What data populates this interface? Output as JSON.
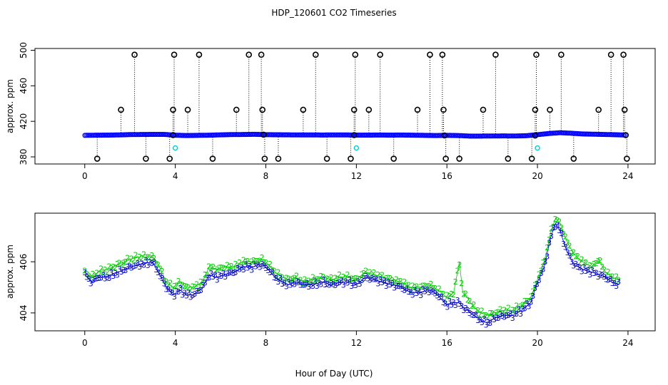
{
  "chart_data": [
    {
      "type": "scatter",
      "panel": "top",
      "title": "HDP_120601  CO2 Timeseries",
      "xlabel": "",
      "ylabel": "approx. ppm",
      "xlim": [
        -2.2,
        25.2
      ],
      "ylim": [
        372,
        502
      ],
      "xticks": [
        0,
        4,
        8,
        12,
        16,
        20,
        24
      ],
      "yticks": [
        380,
        420,
        460,
        500
      ],
      "colors": {
        "series": "#0000ff",
        "extreme": "#000000",
        "low": "#00cccc",
        "drop": "#000000"
      },
      "series": [
        {
          "name": "co2",
          "x": [
            0,
            0.5,
            1,
            1.5,
            2,
            2.5,
            3,
            3.5,
            4,
            4.5,
            5,
            5.5,
            6,
            6.5,
            7,
            7.5,
            8,
            8.5,
            9,
            9.5,
            10,
            10.5,
            11,
            11.5,
            12,
            12.5,
            13,
            13.5,
            14,
            14.5,
            15,
            15.5,
            16,
            16.5,
            17,
            17.5,
            18,
            18.5,
            19,
            19.5,
            20,
            20.5,
            21,
            21.5,
            22,
            22.5,
            23,
            23.5,
            23.9
          ],
          "y": [
            404.2,
            404.4,
            404.5,
            404.7,
            405.1,
            405.2,
            405.3,
            405.3,
            404.4,
            404.0,
            404.2,
            404.4,
            404.8,
            405.1,
            405.2,
            405.4,
            405.0,
            404.9,
            404.8,
            404.7,
            404.7,
            404.6,
            404.7,
            404.7,
            404.5,
            404.5,
            404.6,
            404.5,
            404.6,
            404.4,
            404.2,
            404.0,
            404.2,
            404.0,
            403.4,
            403.4,
            403.5,
            403.6,
            403.5,
            403.8,
            405.0,
            406.3,
            407.2,
            406.6,
            405.8,
            405.5,
            405.2,
            404.9,
            404.5
          ]
        }
      ],
      "spikes": [
        {
          "x": 0.55,
          "y": 378
        },
        {
          "x": 1.6,
          "y": 433
        },
        {
          "x": 2.2,
          "y": 495
        },
        {
          "x": 2.7,
          "y": 378
        },
        {
          "x": 3.75,
          "y": 378
        },
        {
          "x": 3.9,
          "y": 433
        },
        {
          "x": 3.95,
          "y": 495
        },
        {
          "x": 4.55,
          "y": 433
        },
        {
          "x": 5.05,
          "y": 495
        },
        {
          "x": 5.65,
          "y": 378
        },
        {
          "x": 6.7,
          "y": 433
        },
        {
          "x": 7.25,
          "y": 495
        },
        {
          "x": 7.8,
          "y": 495
        },
        {
          "x": 7.85,
          "y": 433
        },
        {
          "x": 7.95,
          "y": 378
        },
        {
          "x": 8.55,
          "y": 378
        },
        {
          "x": 9.65,
          "y": 433
        },
        {
          "x": 10.2,
          "y": 495
        },
        {
          "x": 10.7,
          "y": 378
        },
        {
          "x": 11.75,
          "y": 378
        },
        {
          "x": 11.9,
          "y": 433
        },
        {
          "x": 11.95,
          "y": 495
        },
        {
          "x": 12.55,
          "y": 433
        },
        {
          "x": 13.05,
          "y": 495
        },
        {
          "x": 13.65,
          "y": 378
        },
        {
          "x": 14.7,
          "y": 433
        },
        {
          "x": 15.25,
          "y": 495
        },
        {
          "x": 15.8,
          "y": 495
        },
        {
          "x": 15.85,
          "y": 433
        },
        {
          "x": 15.95,
          "y": 378
        },
        {
          "x": 16.55,
          "y": 378
        },
        {
          "x": 17.6,
          "y": 433
        },
        {
          "x": 18.15,
          "y": 495
        },
        {
          "x": 18.7,
          "y": 378
        },
        {
          "x": 19.75,
          "y": 378
        },
        {
          "x": 19.9,
          "y": 433
        },
        {
          "x": 19.95,
          "y": 495
        },
        {
          "x": 20.55,
          "y": 433
        },
        {
          "x": 21.05,
          "y": 495
        },
        {
          "x": 21.6,
          "y": 378
        },
        {
          "x": 22.7,
          "y": 433
        },
        {
          "x": 23.25,
          "y": 495
        },
        {
          "x": 23.8,
          "y": 495
        },
        {
          "x": 23.85,
          "y": 433
        },
        {
          "x": 23.95,
          "y": 378
        }
      ],
      "lowpoints": [
        {
          "x": 4.0,
          "y": 390
        },
        {
          "x": 12.0,
          "y": 390
        },
        {
          "x": 20.0,
          "y": 390
        }
      ],
      "markers": [
        {
          "x": 3.9,
          "y": 404.5
        },
        {
          "x": 7.9,
          "y": 405.0
        },
        {
          "x": 11.9,
          "y": 404.5
        },
        {
          "x": 15.9,
          "y": 404.1
        },
        {
          "x": 19.9,
          "y": 404.0
        },
        {
          "x": 23.9,
          "y": 404.5
        }
      ]
    },
    {
      "type": "scatter",
      "panel": "bottom",
      "title": "",
      "xlabel": "Hour of Day (UTC)",
      "ylabel": "approx. ppm",
      "xlim": [
        -2.2,
        25.2
      ],
      "ylim": [
        403.3,
        407.9
      ],
      "xticks": [
        0,
        4,
        8,
        12,
        16,
        20,
        24
      ],
      "yticks": [
        404,
        406
      ],
      "colors": {
        "series2": "#00cc00",
        "series3": "#0000cc"
      },
      "series": [
        {
          "name": "2",
          "symbol": "2",
          "x": [
            0,
            0.3,
            0.6,
            1,
            1.5,
            2,
            2.5,
            3,
            3.3,
            3.6,
            3.9,
            4.2,
            4.5,
            4.8,
            5.2,
            5.5,
            5.8,
            6.2,
            6.6,
            7,
            7.4,
            7.8,
            8.1,
            8.4,
            8.7,
            9,
            9.3,
            9.7,
            10.1,
            10.5,
            10.9,
            11.3,
            11.7,
            12,
            12.4,
            12.8,
            13.2,
            13.6,
            14,
            14.4,
            14.8,
            15.2,
            15.6,
            16,
            16.3,
            16.55,
            16.7,
            16.9,
            17.2,
            17.5,
            17.8,
            18.1,
            18.5,
            18.9,
            19.3,
            19.7,
            20,
            20.3,
            20.6,
            20.8,
            21,
            21.3,
            21.6,
            22,
            22.4,
            22.7,
            23,
            23.3,
            23.6
          ],
          "y": [
            405.6,
            405.4,
            405.6,
            405.7,
            405.9,
            406.1,
            406.2,
            406.2,
            405.8,
            405.2,
            405.0,
            405.2,
            405.0,
            405.0,
            405.2,
            405.8,
            405.7,
            405.8,
            405.8,
            406.0,
            406.0,
            406.1,
            405.9,
            405.6,
            405.4,
            405.3,
            405.4,
            405.2,
            405.3,
            405.4,
            405.3,
            405.4,
            405.4,
            405.3,
            405.6,
            405.5,
            405.4,
            405.3,
            405.2,
            405.0,
            405.0,
            405.1,
            404.9,
            404.6,
            404.8,
            406.0,
            404.8,
            404.6,
            404.2,
            404.0,
            403.9,
            404.0,
            404.1,
            404.1,
            404.3,
            404.6,
            405.3,
            406.0,
            407.2,
            407.7,
            407.5,
            406.8,
            406.3,
            406.0,
            405.8,
            406.1,
            405.6,
            405.4,
            405.3
          ]
        },
        {
          "name": "3",
          "symbol": "3",
          "x": [
            0,
            0.3,
            0.6,
            1,
            1.5,
            2,
            2.5,
            3,
            3.3,
            3.6,
            3.9,
            4.2,
            4.5,
            4.8,
            5.2,
            5.5,
            5.8,
            6.2,
            6.6,
            7,
            7.4,
            7.8,
            8.1,
            8.4,
            8.7,
            9,
            9.3,
            9.7,
            10.1,
            10.5,
            10.9,
            11.3,
            11.7,
            12,
            12.4,
            12.8,
            13.2,
            13.6,
            14,
            14.4,
            14.8,
            15.2,
            15.6,
            16,
            16.3,
            16.55,
            16.7,
            16.9,
            17.2,
            17.5,
            17.8,
            18.1,
            18.5,
            18.9,
            19.3,
            19.7,
            20,
            20.3,
            20.6,
            20.8,
            21,
            21.3,
            21.6,
            22,
            22.4,
            22.7,
            23,
            23.3,
            23.6
          ],
          "y": [
            405.5,
            405.2,
            405.4,
            405.4,
            405.6,
            405.8,
            405.9,
            406.0,
            405.5,
            405.0,
            404.7,
            404.9,
            404.7,
            404.7,
            405.0,
            405.5,
            405.4,
            405.5,
            405.6,
            405.8,
            405.8,
            405.9,
            405.7,
            405.4,
            405.2,
            405.1,
            405.2,
            405.1,
            405.1,
            405.2,
            405.1,
            405.2,
            405.2,
            405.1,
            405.4,
            405.3,
            405.2,
            405.1,
            405.0,
            404.8,
            404.8,
            404.9,
            404.7,
            404.3,
            404.4,
            404.4,
            404.2,
            404.1,
            403.9,
            403.7,
            403.6,
            403.8,
            403.9,
            403.9,
            404.1,
            404.4,
            405.2,
            405.8,
            407.0,
            407.5,
            407.2,
            406.4,
            405.9,
            405.7,
            405.6,
            405.5,
            405.4,
            405.2,
            405.1
          ]
        }
      ]
    }
  ]
}
